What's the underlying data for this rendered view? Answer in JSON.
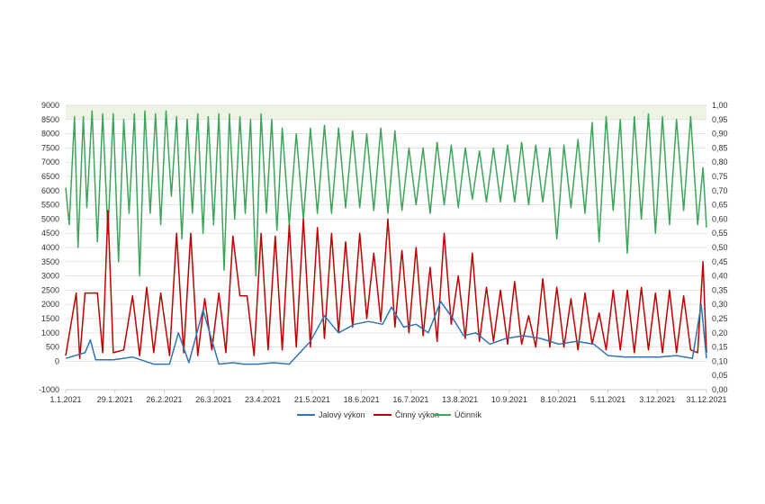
{
  "chart_data": {
    "type": "line",
    "y_left": {
      "ylim": [
        -1000,
        9000
      ],
      "ticks": [
        "-1000",
        "0",
        "500",
        "1000",
        "1500",
        "2000",
        "2500",
        "3000",
        "3500",
        "4000",
        "4500",
        "5000",
        "5500",
        "6000",
        "6500",
        "7000",
        "7500",
        "8000",
        "8500",
        "9000"
      ]
    },
    "y_right": {
      "ylim": [
        0.0,
        1.0
      ],
      "ticks": [
        "0,00",
        "0,05",
        "0,10",
        "0,15",
        "0,20",
        "0,25",
        "0,30",
        "0,35",
        "0,40",
        "0,45",
        "0,50",
        "0,55",
        "0,60",
        "0,65",
        "0,70",
        "0,75",
        "0,80",
        "0,85",
        "0,90",
        "0,95",
        "1,00"
      ]
    },
    "x_tick_labels": [
      "1.1.2021",
      "29.1.2021",
      "26.2.2021",
      "26.3.2021",
      "23.4.2021",
      "21.5.2021",
      "18.6.2021",
      "16.7.2021",
      "13.8.2021",
      "10.9.2021",
      "8.10.2021",
      "5.11.2021",
      "3.12.2021",
      "31.12.2021"
    ],
    "band": {
      "from": 0.95,
      "to": 1.0,
      "color": "#eef4e3"
    },
    "series": [
      {
        "name": "Jalový výkon",
        "axis": "left",
        "color": "#2e75b6",
        "dates": [
          "2021-01-01",
          "2021-01-12",
          "2021-01-15",
          "2021-01-18",
          "2021-01-28",
          "2021-02-08",
          "2021-02-20",
          "2021-03-01",
          "2021-03-06",
          "2021-03-12",
          "2021-03-20",
          "2021-03-29",
          "2021-04-06",
          "2021-04-12",
          "2021-04-20",
          "2021-04-29",
          "2021-05-08",
          "2021-05-14",
          "2021-05-20",
          "2021-05-28",
          "2021-06-05",
          "2021-06-14",
          "2021-06-22",
          "2021-06-30",
          "2021-07-05",
          "2021-07-12",
          "2021-07-19",
          "2021-07-26",
          "2021-08-02",
          "2021-08-09",
          "2021-08-15",
          "2021-08-22",
          "2021-08-30",
          "2021-09-08",
          "2021-09-18",
          "2021-09-28",
          "2021-10-08",
          "2021-10-18",
          "2021-10-28",
          "2021-11-05",
          "2021-11-15",
          "2021-11-25",
          "2021-12-04",
          "2021-12-14",
          "2021-12-23",
          "2021-12-28",
          "2021-12-31"
        ],
        "values": [
          100,
          300,
          750,
          50,
          50,
          150,
          -100,
          -100,
          1000,
          -50,
          1800,
          -100,
          -50,
          -100,
          -100,
          -50,
          -100,
          300,
          700,
          1600,
          1000,
          1300,
          1400,
          1300,
          1900,
          1200,
          1300,
          1000,
          2100,
          1500,
          900,
          1000,
          600,
          800,
          900,
          800,
          600,
          700,
          600,
          200,
          150,
          150,
          150,
          200,
          100,
          2000,
          100
        ]
      },
      {
        "name": "Činný výkon",
        "axis": "left",
        "color": "#c00000",
        "dates": [
          "2021-01-01",
          "2021-01-07",
          "2021-01-09",
          "2021-01-12",
          "2021-01-19",
          "2021-01-22",
          "2021-01-25",
          "2021-01-28",
          "2021-02-03",
          "2021-02-08",
          "2021-02-12",
          "2021-02-16",
          "2021-02-20",
          "2021-02-24",
          "2021-03-01",
          "2021-03-05",
          "2021-03-09",
          "2021-03-13",
          "2021-03-17",
          "2021-03-21",
          "2021-03-25",
          "2021-03-29",
          "2021-04-02",
          "2021-04-06",
          "2021-04-10",
          "2021-04-14",
          "2021-04-18",
          "2021-04-22",
          "2021-04-26",
          "2021-04-30",
          "2021-05-04",
          "2021-05-08",
          "2021-05-12",
          "2021-05-16",
          "2021-05-20",
          "2021-05-24",
          "2021-05-28",
          "2021-06-01",
          "2021-06-05",
          "2021-06-09",
          "2021-06-13",
          "2021-06-17",
          "2021-06-21",
          "2021-06-25",
          "2021-06-29",
          "2021-07-03",
          "2021-07-07",
          "2021-07-11",
          "2021-07-15",
          "2021-07-19",
          "2021-07-23",
          "2021-07-27",
          "2021-07-31",
          "2021-08-04",
          "2021-08-08",
          "2021-08-12",
          "2021-08-16",
          "2021-08-20",
          "2021-08-24",
          "2021-08-28",
          "2021-09-01",
          "2021-09-05",
          "2021-09-09",
          "2021-09-13",
          "2021-09-17",
          "2021-09-21",
          "2021-09-25",
          "2021-09-29",
          "2021-10-03",
          "2021-10-07",
          "2021-10-11",
          "2021-10-15",
          "2021-10-19",
          "2021-10-23",
          "2021-10-27",
          "2021-10-31",
          "2021-11-04",
          "2021-11-08",
          "2021-11-12",
          "2021-11-16",
          "2021-11-20",
          "2021-11-24",
          "2021-11-28",
          "2021-12-02",
          "2021-12-06",
          "2021-12-10",
          "2021-12-14",
          "2021-12-18",
          "2021-12-22",
          "2021-12-26",
          "2021-12-29",
          "2021-12-31"
        ],
        "values": [
          200,
          2400,
          100,
          2400,
          2400,
          300,
          5300,
          300,
          400,
          2300,
          200,
          2600,
          300,
          2400,
          200,
          4500,
          300,
          4500,
          200,
          2200,
          400,
          2400,
          300,
          4400,
          2300,
          2300,
          200,
          4500,
          400,
          4400,
          400,
          4800,
          500,
          5000,
          500,
          4700,
          800,
          4500,
          1000,
          4200,
          1200,
          4500,
          1500,
          3800,
          1400,
          5000,
          1200,
          3900,
          1000,
          4000,
          900,
          3300,
          700,
          4500,
          1300,
          3000,
          800,
          3800,
          700,
          2600,
          700,
          2500,
          600,
          2800,
          600,
          1600,
          500,
          2900,
          500,
          2600,
          500,
          2200,
          400,
          2400,
          600,
          1700,
          400,
          2500,
          400,
          2500,
          300,
          2600,
          400,
          2400,
          300,
          2500,
          300,
          2300,
          400,
          300,
          3500,
          300
        ]
      },
      {
        "name": "Účinník",
        "axis": "right",
        "color": "#3da55a",
        "dates": [
          "2021-01-01",
          "2021-01-03",
          "2021-01-06",
          "2021-01-08",
          "2021-01-11",
          "2021-01-13",
          "2021-01-16",
          "2021-01-19",
          "2021-01-22",
          "2021-01-25",
          "2021-01-28",
          "2021-01-31",
          "2021-02-03",
          "2021-02-06",
          "2021-02-09",
          "2021-02-12",
          "2021-02-15",
          "2021-02-18",
          "2021-02-21",
          "2021-02-24",
          "2021-02-27",
          "2021-03-02",
          "2021-03-05",
          "2021-03-08",
          "2021-03-11",
          "2021-03-14",
          "2021-03-17",
          "2021-03-20",
          "2021-03-23",
          "2021-03-26",
          "2021-03-29",
          "2021-04-01",
          "2021-04-04",
          "2021-04-07",
          "2021-04-10",
          "2021-04-13",
          "2021-04-16",
          "2021-04-19",
          "2021-04-22",
          "2021-04-25",
          "2021-04-28",
          "2021-05-01",
          "2021-05-04",
          "2021-05-08",
          "2021-05-12",
          "2021-05-16",
          "2021-05-20",
          "2021-05-24",
          "2021-05-28",
          "2021-06-01",
          "2021-06-05",
          "2021-06-09",
          "2021-06-13",
          "2021-06-17",
          "2021-06-21",
          "2021-06-25",
          "2021-06-29",
          "2021-07-03",
          "2021-07-07",
          "2021-07-11",
          "2021-07-15",
          "2021-07-19",
          "2021-07-23",
          "2021-07-27",
          "2021-07-31",
          "2021-08-04",
          "2021-08-08",
          "2021-08-12",
          "2021-08-16",
          "2021-08-20",
          "2021-08-24",
          "2021-08-28",
          "2021-09-01",
          "2021-09-05",
          "2021-09-09",
          "2021-09-13",
          "2021-09-17",
          "2021-09-21",
          "2021-09-25",
          "2021-09-29",
          "2021-10-03",
          "2021-10-07",
          "2021-10-11",
          "2021-10-15",
          "2021-10-19",
          "2021-10-23",
          "2021-10-27",
          "2021-10-31",
          "2021-11-04",
          "2021-11-08",
          "2021-11-12",
          "2021-11-16",
          "2021-11-20",
          "2021-11-24",
          "2021-11-28",
          "2021-12-02",
          "2021-12-06",
          "2021-12-10",
          "2021-12-14",
          "2021-12-18",
          "2021-12-22",
          "2021-12-26",
          "2021-12-29",
          "2021-12-31"
        ],
        "values": [
          0.71,
          0.58,
          0.96,
          0.5,
          0.96,
          0.64,
          0.98,
          0.52,
          0.97,
          0.55,
          0.97,
          0.45,
          0.95,
          0.62,
          0.97,
          0.4,
          0.98,
          0.62,
          0.97,
          0.58,
          0.98,
          0.68,
          0.96,
          0.53,
          0.95,
          0.62,
          0.97,
          0.55,
          0.96,
          0.58,
          0.97,
          0.42,
          0.97,
          0.6,
          0.96,
          0.62,
          0.95,
          0.4,
          0.97,
          0.62,
          0.95,
          0.56,
          0.92,
          0.58,
          0.9,
          0.6,
          0.92,
          0.62,
          0.93,
          0.62,
          0.92,
          0.64,
          0.91,
          0.64,
          0.9,
          0.63,
          0.92,
          0.62,
          0.91,
          0.63,
          0.85,
          0.65,
          0.85,
          0.62,
          0.87,
          0.65,
          0.86,
          0.64,
          0.85,
          0.67,
          0.84,
          0.66,
          0.85,
          0.66,
          0.86,
          0.66,
          0.87,
          0.65,
          0.86,
          0.66,
          0.85,
          0.53,
          0.86,
          0.64,
          0.88,
          0.62,
          0.94,
          0.52,
          0.96,
          0.63,
          0.95,
          0.48,
          0.96,
          0.6,
          0.97,
          0.55,
          0.96,
          0.58,
          0.95,
          0.63,
          0.96,
          0.58,
          0.78,
          0.57
        ]
      }
    ]
  }
}
